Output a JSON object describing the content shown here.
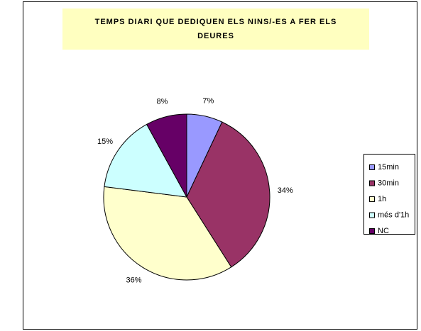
{
  "chart_data": {
    "type": "pie",
    "title": "TEMPS DIARI QUE DEDIQUEN ELS NINS/-ES A FER ELS DEURES",
    "categories": [
      "15min",
      "30min",
      "1h",
      "més d'1h",
      "NC"
    ],
    "values": [
      7,
      34,
      36,
      15,
      8
    ],
    "value_labels": [
      "7%",
      "34%",
      "36%",
      "15%",
      "8%"
    ],
    "colors": [
      "#9999ff",
      "#993366",
      "#ffffcc",
      "#ccffff",
      "#660066"
    ],
    "legend": "right"
  }
}
